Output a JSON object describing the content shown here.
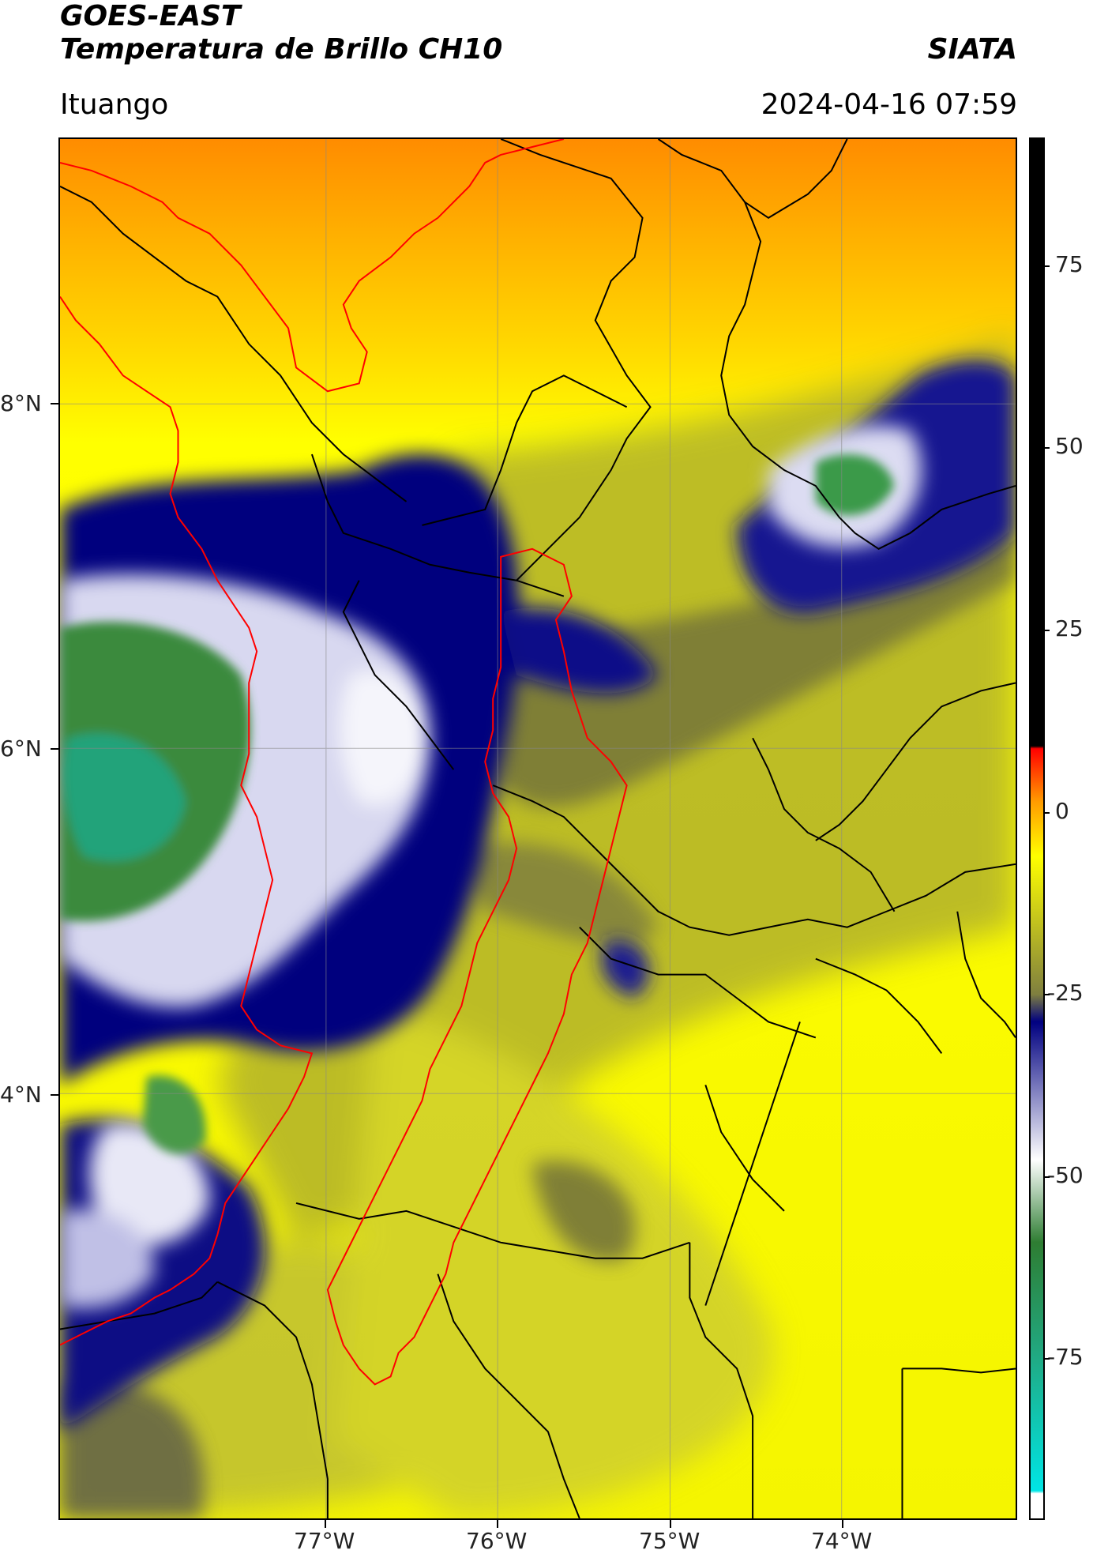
{
  "header": {
    "satellite": "GOES-EAST",
    "product": "Temperatura de Brillo CH10",
    "org": "SIATA",
    "region": "Ituango",
    "timestamp": "2024-04-16 07:59"
  },
  "map": {
    "lon_range": [
      -78.55,
      -73.0
    ],
    "lat_range": [
      2.55,
      9.55
    ],
    "lat_labels": [
      "8°N",
      "6°N",
      "4°N"
    ],
    "lon_labels": [
      "77°W",
      "76°W",
      "75°W",
      "74°W"
    ],
    "gridlines": true
  },
  "colorbar": {
    "range": [
      -95,
      90
    ],
    "tick_labels": [
      "75",
      "50",
      "25",
      "0",
      "-25",
      "-50",
      "-75"
    ],
    "colors": {
      "black": "#000000",
      "red": "#ff0000",
      "orange": "#ff9a00",
      "yellow": "#ffff00",
      "olive": "#7f7f3f",
      "navy": "#000080",
      "white": "#ffffff",
      "green": "#2e7d32",
      "teal": "#21a880",
      "cyan": "#00e5e5"
    }
  }
}
